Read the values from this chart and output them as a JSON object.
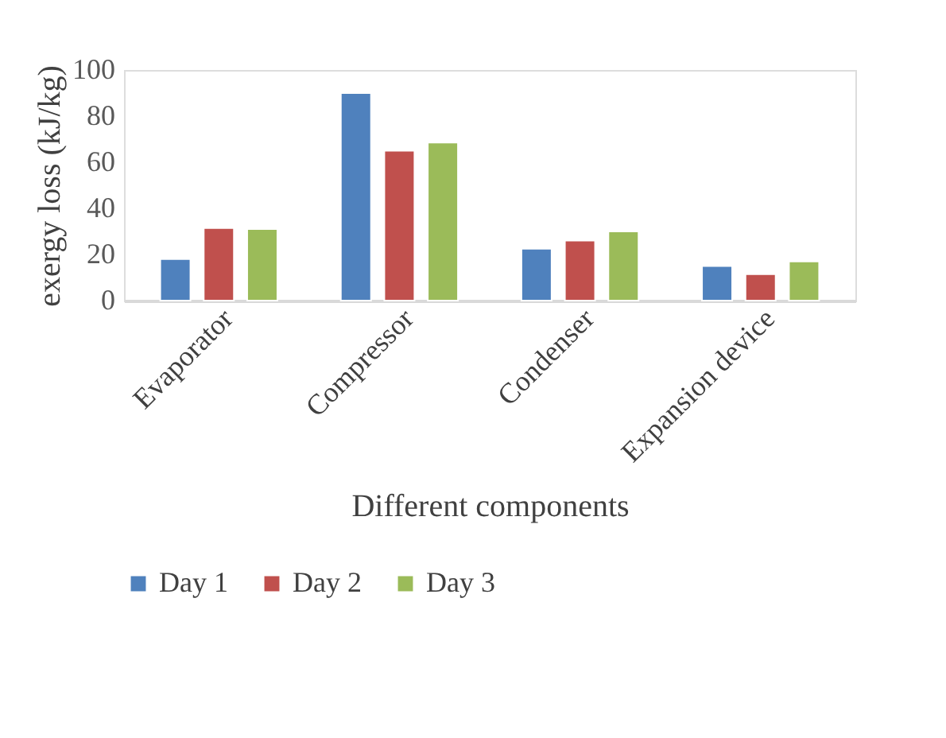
{
  "chart_data": {
    "type": "bar",
    "xlabel": "Different components",
    "ylabel": "exergy loss (kJ/kg)",
    "categories": [
      "Evaporator",
      "Compressor",
      "Condenser",
      "Expansion device"
    ],
    "series": [
      {
        "name": "Day 1",
        "color": "#4f81bd",
        "values": [
          18,
          90,
          22.5,
          15
        ]
      },
      {
        "name": "Day 2",
        "color": "#c0504d",
        "values": [
          31.5,
          65,
          26,
          11.5
        ]
      },
      {
        "name": "Day 3",
        "color": "#9bbb59",
        "values": [
          31,
          68.5,
          30,
          17
        ]
      }
    ],
    "ylim": [
      0,
      100
    ],
    "yticks": [
      0,
      20,
      40,
      60,
      80,
      100
    ],
    "grid": false,
    "legend": "bottom"
  }
}
